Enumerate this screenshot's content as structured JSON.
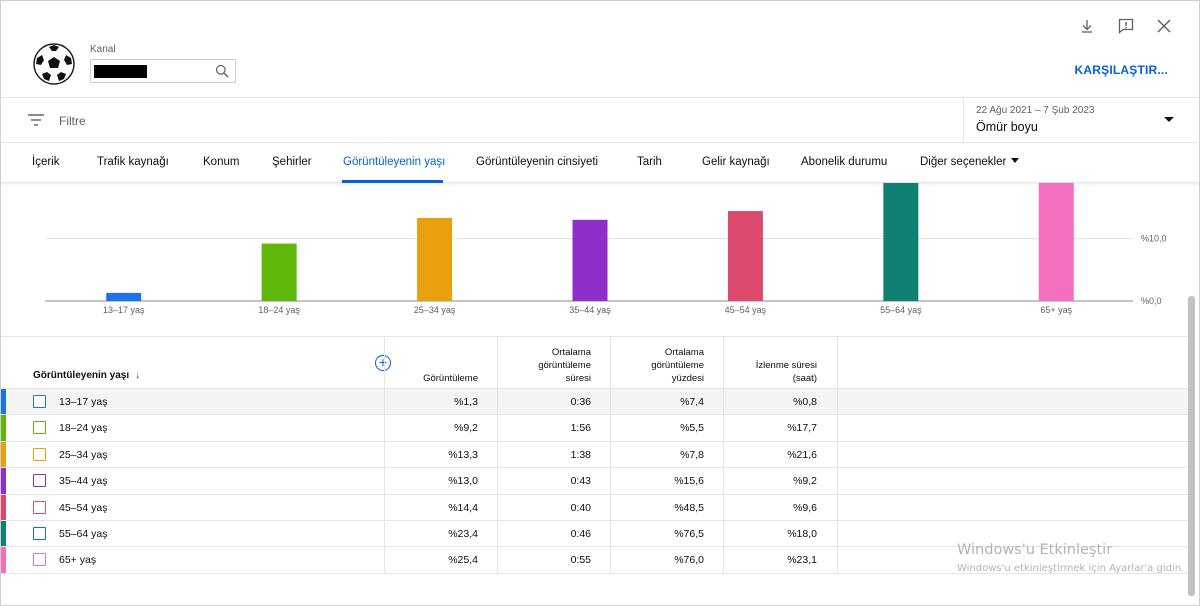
{
  "header": {
    "channel_label": "Kanal",
    "compare_button": "KARŞILAŞTIR...",
    "icons": [
      "download-icon",
      "feedback-icon",
      "close-icon"
    ]
  },
  "filter": {
    "label": "Filtre",
    "date_range": "22 Ağu 2021 – 7 Şub 2023",
    "period": "Ömür boyu"
  },
  "tabs": [
    {
      "label": "İçerik"
    },
    {
      "label": "Trafik kaynağı"
    },
    {
      "label": "Konum"
    },
    {
      "label": "Şehirler"
    },
    {
      "label": "Görüntüleyenin yaşı",
      "active": true
    },
    {
      "label": "Görüntüleyenin cinsiyeti"
    },
    {
      "label": "Tarih"
    },
    {
      "label": "Gelir kaynağı"
    },
    {
      "label": "Abonelik durumu"
    },
    {
      "label": "Diğer seçenekler",
      "dropdown": true
    }
  ],
  "chart_data": {
    "type": "bar",
    "categories": [
      "13–17 yaş",
      "18–24 yaş",
      "25–34 yaş",
      "35–44 yaş",
      "45–54 yaş",
      "55–64 yaş",
      "65+ yaş"
    ],
    "values": [
      1.3,
      9.2,
      13.3,
      13.0,
      14.4,
      23.4,
      25.4
    ],
    "colors": [
      "#1a73e8",
      "#5fb709",
      "#e8a10c",
      "#8f2ec9",
      "#dc4a6d",
      "#0e8172",
      "#f46ebf"
    ],
    "yticks": [
      "%10,0",
      "%0,0"
    ],
    "y_visible_max": 18.9,
    "grid": true
  },
  "table": {
    "columns": {
      "name": "Görüntüleyenin yaşı",
      "views": "Görüntüleme",
      "avg_duration": [
        "Ortalama",
        "görüntüleme",
        "süresi"
      ],
      "avg_percent": [
        "Ortalama",
        "görüntüleme",
        "yüzdesi"
      ],
      "watch_time": [
        "İzlenme süresi",
        "(saat)"
      ]
    },
    "rows": [
      {
        "label": "13–17 yaş",
        "views": "%1,3",
        "avg_duration": "0:36",
        "avg_percent": "%7,4",
        "watch_time": "%0,8",
        "color": "#1a73e8"
      },
      {
        "label": "18–24 yaş",
        "views": "%9,2",
        "avg_duration": "1:56",
        "avg_percent": "%5,5",
        "watch_time": "%17,7",
        "color": "#5fb709"
      },
      {
        "label": "25–34 yaş",
        "views": "%13,3",
        "avg_duration": "1:38",
        "avg_percent": "%7,8",
        "watch_time": "%21,6",
        "color": "#e8a10c"
      },
      {
        "label": "35–44 yaş",
        "views": "%13,0",
        "avg_duration": "0:43",
        "avg_percent": "%15,6",
        "watch_time": "%9,2",
        "color": "#8f2ec9"
      },
      {
        "label": "45–54 yaş",
        "views": "%14,4",
        "avg_duration": "0:40",
        "avg_percent": "%48,5",
        "watch_time": "%9,6",
        "color": "#dc4a6d"
      },
      {
        "label": "55–64 yaş",
        "views": "%23,4",
        "avg_duration": "0:46",
        "avg_percent": "%76,5",
        "watch_time": "%18,0",
        "color": "#0e8172"
      },
      {
        "label": "65+ yaş",
        "views": "%25,4",
        "avg_duration": "0:55",
        "avg_percent": "%76,0",
        "watch_time": "%23,1",
        "color": "#f46ebf"
      }
    ]
  },
  "watermark": {
    "title": "Windows'u Etkinleştir",
    "subtitle": "Windows'u etkinleştirmek için Ayarlar'a gidin."
  }
}
